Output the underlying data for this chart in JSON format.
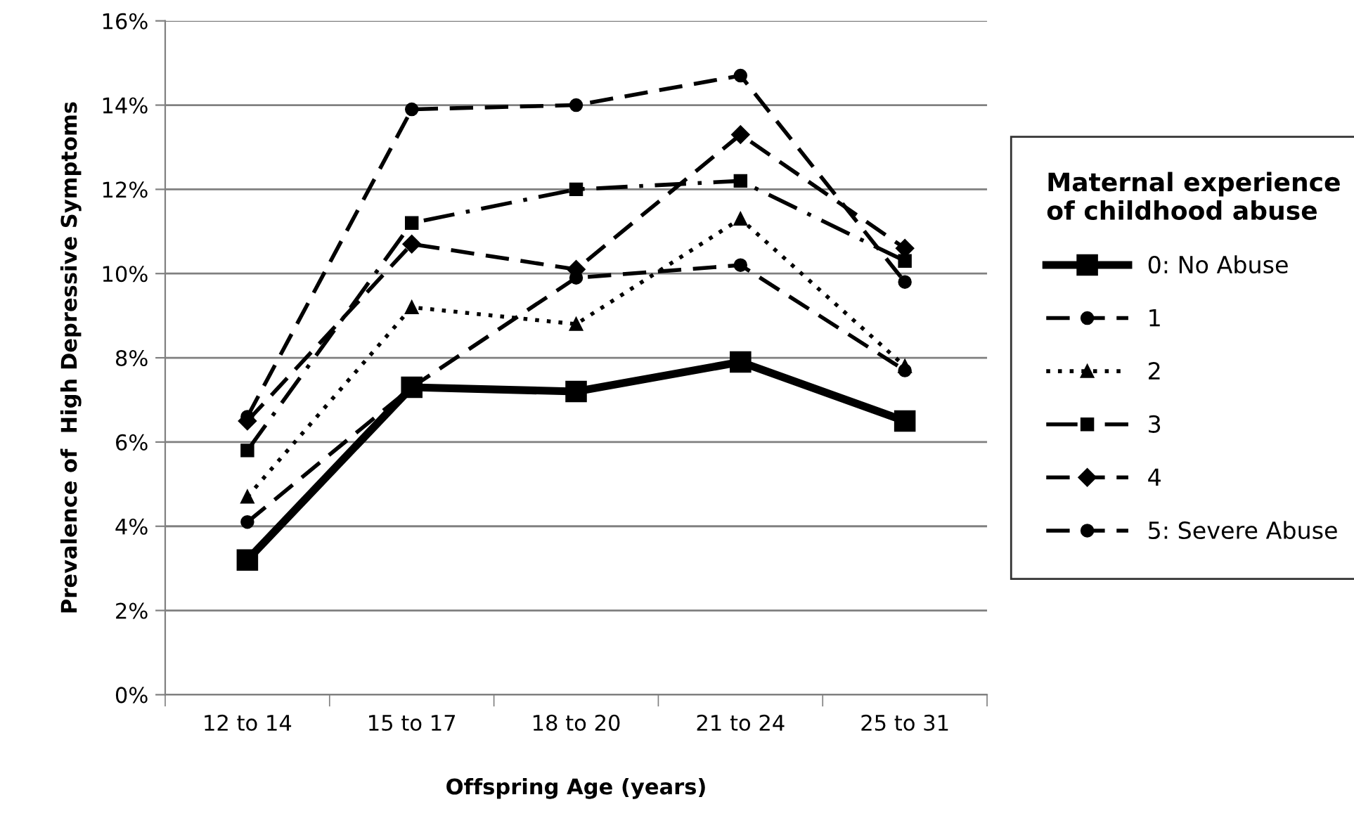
{
  "chart_data": {
    "type": "line",
    "xlabel": "Offspring Age (years)",
    "ylabel": "Prevalence of  High Depressive Symptoms",
    "legend_title": "Maternal experience\nof childhood abuse",
    "legend": "right",
    "grid": "y",
    "categories": [
      "12 to 14",
      "15 to 17",
      "18 to 20",
      "21 to 24",
      "25 to 31"
    ],
    "ylim": [
      0,
      16
    ],
    "yticks": [
      {
        "value": 0,
        "label": "0%"
      },
      {
        "value": 2,
        "label": "2%"
      },
      {
        "value": 4,
        "label": "4%"
      },
      {
        "value": 6,
        "label": "6%"
      },
      {
        "value": 8,
        "label": "8%"
      },
      {
        "value": 10,
        "label": "10%"
      },
      {
        "value": 12,
        "label": "12%"
      },
      {
        "value": 14,
        "label": "14%"
      },
      {
        "value": 16,
        "label": "16%"
      }
    ],
    "series": [
      {
        "name": "0: No Abuse",
        "color": "#000000",
        "marker": "square",
        "line_style": "solid",
        "values": [
          3.2,
          7.3,
          7.2,
          7.9,
          6.5
        ]
      },
      {
        "name": "1",
        "color": "#000000",
        "marker": "circle",
        "line_style": "dashed",
        "values": [
          4.1,
          7.3,
          9.9,
          10.2,
          7.7
        ]
      },
      {
        "name": "2",
        "color": "#000000",
        "marker": "triangle",
        "line_style": "dotted",
        "values": [
          4.7,
          9.2,
          8.8,
          11.3,
          7.8
        ]
      },
      {
        "name": "3",
        "color": "#000000",
        "marker": "square",
        "line_style": "dashdot",
        "values": [
          5.8,
          11.2,
          12.0,
          12.2,
          10.3
        ]
      },
      {
        "name": "4",
        "color": "#000000",
        "marker": "diamond",
        "line_style": "dashed",
        "values": [
          6.5,
          10.7,
          10.1,
          13.3,
          10.6
        ]
      },
      {
        "name": "5: Severe Abuse",
        "color": "#000000",
        "marker": "circle",
        "line_style": "dashed",
        "values": [
          6.6,
          13.9,
          14.0,
          14.7,
          9.8
        ]
      }
    ]
  }
}
